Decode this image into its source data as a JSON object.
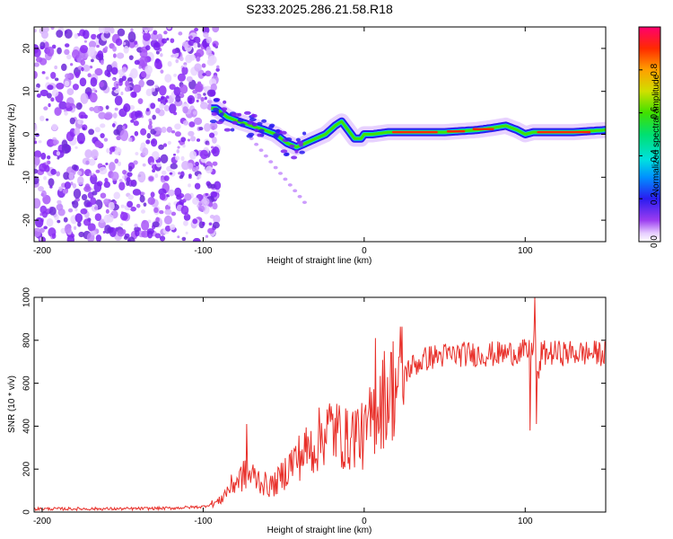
{
  "title": "S233.2025.286.21.58.R18",
  "chart_data": [
    {
      "type": "heatmap",
      "name": "spectrogram",
      "xlabel": "Height of straight line (km)",
      "ylabel": "Frequency (Hz)",
      "xlim": [
        -205,
        150
      ],
      "ylim": [
        -25,
        25
      ],
      "xticks": [
        -200,
        -100,
        0,
        100
      ],
      "yticks": [
        -20,
        -10,
        0,
        10,
        20
      ],
      "noise_region_x": [
        -205,
        -95
      ],
      "ridge": {
        "x": [
          -92,
          -85,
          -78,
          -70,
          -62,
          -55,
          -48,
          -42,
          -36,
          -30,
          -24,
          -18,
          -14,
          -10,
          -6,
          -2,
          0,
          5,
          15,
          30,
          50,
          70,
          80,
          88,
          95,
          100,
          105,
          115,
          130,
          150
        ],
        "freq": [
          6,
          4,
          3,
          2,
          1,
          0,
          -2,
          -3,
          -2,
          -1,
          0,
          2,
          3,
          1,
          -1,
          -1,
          0,
          0,
          0.5,
          0.5,
          0.5,
          1,
          1.5,
          2,
          1,
          0,
          0.5,
          0.5,
          0.5,
          1
        ]
      },
      "colorbar": {
        "label": "Normalized spectral amplitude",
        "range": [
          0,
          1
        ],
        "ticks": [
          0.0,
          0.2,
          0.4,
          0.6,
          0.8
        ],
        "tick_labels": [
          "0.0",
          "0.2",
          "0.4",
          "0.6",
          "0.8"
        ]
      }
    },
    {
      "type": "line",
      "name": "snr",
      "xlabel": "Height of straight line (km)",
      "ylabel": "SNR (10 * v/v)",
      "xlim": [
        -205,
        150
      ],
      "ylim": [
        0,
        1000
      ],
      "xticks": [
        -200,
        -100,
        0,
        100
      ],
      "yticks": [
        0,
        200,
        400,
        600,
        800,
        1000
      ],
      "color": "#e8302a",
      "series": {
        "x": [
          -205,
          -180,
          -150,
          -120,
          -100,
          -90,
          -85,
          -80,
          -75,
          -70,
          -65,
          -60,
          -55,
          -50,
          -45,
          -40,
          -35,
          -30,
          -25,
          -20,
          -15,
          -10,
          -5,
          0,
          5,
          10,
          15,
          20,
          25,
          30,
          35,
          40,
          50,
          60,
          70,
          80,
          90,
          95,
          100,
          104,
          106,
          108,
          110,
          120,
          130,
          140,
          150
        ],
        "y": [
          15,
          15,
          15,
          18,
          25,
          50,
          100,
          140,
          170,
          170,
          150,
          120,
          130,
          180,
          230,
          260,
          290,
          310,
          380,
          390,
          360,
          330,
          380,
          340,
          440,
          510,
          560,
          600,
          650,
          680,
          700,
          720,
          730,
          735,
          735,
          735,
          740,
          745,
          745,
          745,
          850,
          600,
          740,
          740,
          740,
          740,
          740
        ],
        "spikes": [
          {
            "x": -73,
            "y": 410
          },
          {
            "x": 7,
            "y": 810
          },
          {
            "x": 103,
            "y": 380
          },
          {
            "x": 106,
            "y": 1000
          },
          {
            "x": 107,
            "y": 410
          }
        ]
      }
    }
  ]
}
